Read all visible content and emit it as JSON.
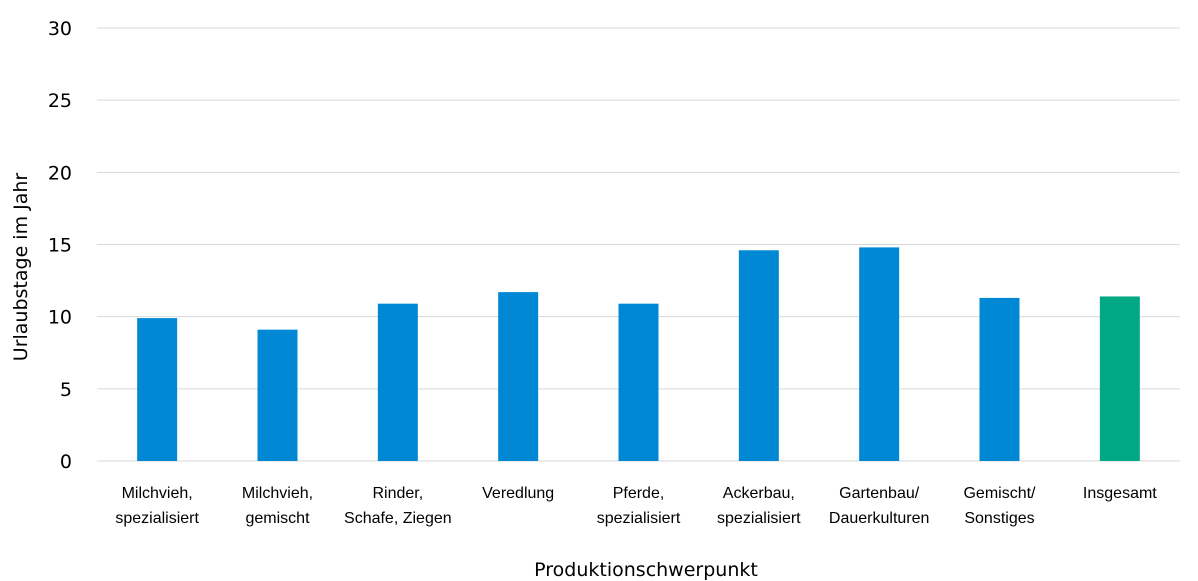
{
  "chart_data": {
    "type": "bar",
    "xlabel": "Produktionschwerpunkt",
    "ylabel": "Urlaubstage im Jahr",
    "ylim": [
      0,
      30
    ],
    "yticks": [
      0,
      5,
      10,
      15,
      20,
      25,
      30
    ],
    "grid": true,
    "categories": [
      [
        "Milchvieh,",
        "spezialisiert"
      ],
      [
        "Milchvieh,",
        "gemischt"
      ],
      [
        "Rinder,",
        "Schafe, Ziegen"
      ],
      [
        "Veredlung"
      ],
      [
        "Pferde,",
        "spezialisiert"
      ],
      [
        "Ackerbau,",
        "spezialisiert"
      ],
      [
        "Gartenbau/",
        "Dauerkulturen"
      ],
      [
        "Gemischt/",
        "Sonstiges"
      ],
      [
        "Insgesamt"
      ]
    ],
    "values": [
      9.9,
      9.1,
      10.9,
      11.7,
      10.9,
      14.6,
      14.8,
      11.3,
      11.4
    ],
    "colors": {
      "default": "#0088d4",
      "highlight": "#00a885",
      "highlight_category_index": 8,
      "grid": "#d9d9d9"
    }
  }
}
